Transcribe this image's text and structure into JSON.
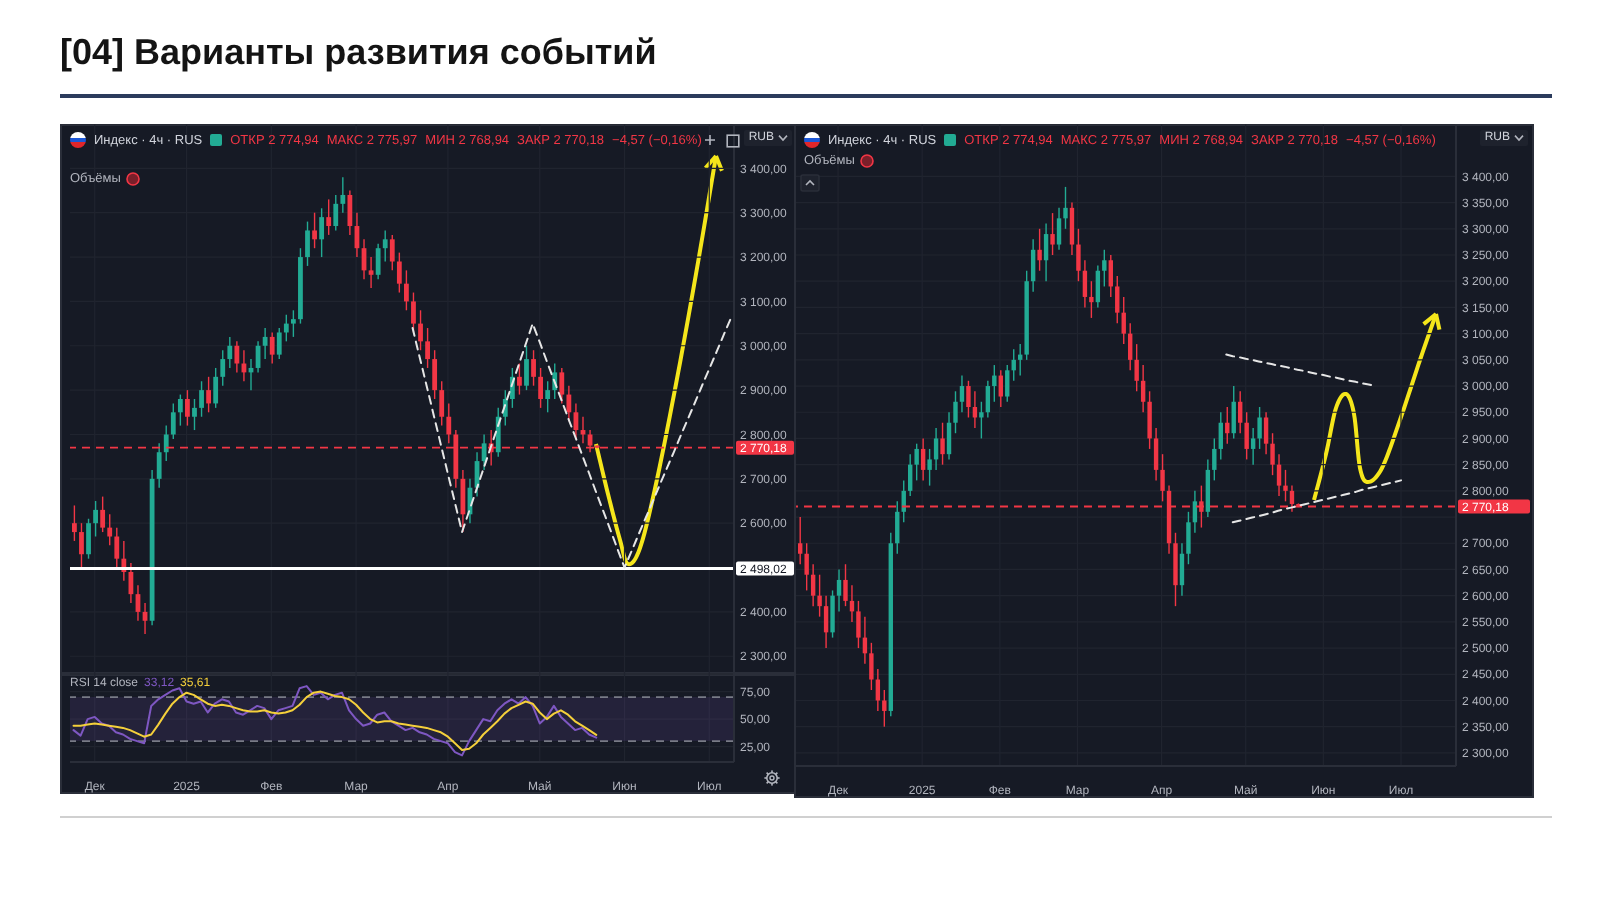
{
  "chart_data": [
    {
      "type": "candlestick",
      "title": "[04] Варианты развития событий",
      "annotations": [
        "Индекс · 4ч · RUS",
        "ОТКР 2 774,94",
        "МАКС 2 775,97",
        "МИН 2 768,94",
        "ЗАКР 2 770,18",
        "−4,57 (−0,16%)",
        "Объёмы",
        "RUB"
      ],
      "categories": [
        null,
        null,
        null,
        null,
        null,
        null,
        null,
        null,
        null,
        null,
        null,
        null,
        null,
        null,
        null,
        null,
        null,
        null,
        null,
        null,
        null,
        null,
        null,
        null,
        null,
        null,
        null,
        null,
        null,
        null,
        null,
        null,
        null,
        null,
        null,
        null,
        null,
        null,
        null,
        null,
        null,
        null,
        null,
        null,
        null,
        null,
        null,
        null,
        null,
        null,
        null,
        null,
        null,
        null,
        null,
        null,
        null,
        null,
        null,
        null,
        null,
        null,
        null,
        null,
        null,
        null,
        null,
        null,
        null,
        null,
        null,
        null,
        null,
        null,
        null,
        null,
        null,
        null,
        null,
        null,
        null,
        null,
        null,
        null,
        null,
        null,
        null,
        null,
        null,
        null,
        null,
        null,
        null,
        null
      ],
      "series": [
        {
          "type": "candlestick",
          "ohlc": [
            [
              2600,
              2640,
              2560,
              2580
            ],
            [
              2580,
              2600,
              2500,
              2530
            ],
            [
              2530,
              2610,
              2520,
              2600
            ],
            [
              2600,
              2650,
              2570,
              2630
            ],
            [
              2630,
              2660,
              2580,
              2590
            ],
            [
              2590,
              2620,
              2550,
              2570
            ],
            [
              2570,
              2590,
              2500,
              2520
            ],
            [
              2520,
              2560,
              2470,
              2490
            ],
            [
              2490,
              2510,
              2420,
              2440
            ],
            [
              2440,
              2460,
              2380,
              2400
            ],
            [
              2400,
              2420,
              2350,
              2380
            ],
            [
              2380,
              2720,
              2370,
              2700
            ],
            [
              2700,
              2780,
              2680,
              2760
            ],
            [
              2760,
              2820,
              2740,
              2800
            ],
            [
              2800,
              2870,
              2790,
              2850
            ],
            [
              2850,
              2890,
              2820,
              2880
            ],
            [
              2880,
              2900,
              2820,
              2840
            ],
            [
              2840,
              2880,
              2810,
              2860
            ],
            [
              2860,
              2920,
              2840,
              2900
            ],
            [
              2900,
              2930,
              2850,
              2870
            ],
            [
              2870,
              2950,
              2860,
              2930
            ],
            [
              2930,
              2990,
              2910,
              2970
            ],
            [
              2970,
              3020,
              2950,
              3000
            ],
            [
              3000,
              3010,
              2940,
              2960
            ],
            [
              2960,
              2990,
              2920,
              2940
            ],
            [
              2940,
              2970,
              2900,
              2950
            ],
            [
              2950,
              3010,
              2940,
              3000
            ],
            [
              3000,
              3040,
              2970,
              3020
            ],
            [
              3020,
              3030,
              2960,
              2980
            ],
            [
              2980,
              3040,
              2970,
              3030
            ],
            [
              3030,
              3070,
              3010,
              3050
            ],
            [
              3050,
              3080,
              3020,
              3060
            ],
            [
              3060,
              3220,
              3050,
              3200
            ],
            [
              3200,
              3280,
              3180,
              3260
            ],
            [
              3260,
              3300,
              3220,
              3240
            ],
            [
              3240,
              3310,
              3200,
              3290
            ],
            [
              3290,
              3330,
              3250,
              3270
            ],
            [
              3270,
              3340,
              3260,
              3320
            ],
            [
              3320,
              3380,
              3300,
              3340
            ],
            [
              3340,
              3350,
              3250,
              3270
            ],
            [
              3270,
              3300,
              3200,
              3220
            ],
            [
              3220,
              3240,
              3150,
              3170
            ],
            [
              3170,
              3200,
              3130,
              3160
            ],
            [
              3160,
              3230,
              3150,
              3220
            ],
            [
              3220,
              3260,
              3190,
              3240
            ],
            [
              3240,
              3250,
              3170,
              3190
            ],
            [
              3190,
              3210,
              3120,
              3140
            ],
            [
              3140,
              3170,
              3080,
              3100
            ],
            [
              3100,
              3120,
              3030,
              3050
            ],
            [
              3050,
              3080,
              2990,
              3010
            ],
            [
              3010,
              3040,
              2950,
              2970
            ],
            [
              2970,
              2990,
              2880,
              2900
            ],
            [
              2900,
              2920,
              2820,
              2840
            ],
            [
              2840,
              2870,
              2780,
              2800
            ],
            [
              2800,
              2810,
              2680,
              2700
            ],
            [
              2700,
              2720,
              2580,
              2620
            ],
            [
              2620,
              2700,
              2600,
              2680
            ],
            [
              2680,
              2760,
              2660,
              2740
            ],
            [
              2740,
              2800,
              2720,
              2780
            ],
            [
              2780,
              2810,
              2730,
              2760
            ],
            [
              2760,
              2860,
              2750,
              2840
            ],
            [
              2840,
              2900,
              2820,
              2880
            ],
            [
              2880,
              2950,
              2860,
              2930
            ],
            [
              2930,
              2960,
              2890,
              2910
            ],
            [
              2910,
              3000,
              2900,
              2970
            ],
            [
              2970,
              2990,
              2910,
              2930
            ],
            [
              2930,
              2950,
              2860,
              2880
            ],
            [
              2880,
              2920,
              2850,
              2900
            ],
            [
              2900,
              2960,
              2880,
              2940
            ],
            [
              2940,
              2950,
              2870,
              2890
            ],
            [
              2890,
              2910,
              2830,
              2850
            ],
            [
              2850,
              2870,
              2790,
              2810
            ],
            [
              2810,
              2840,
              2780,
              2800
            ],
            [
              2800,
              2810,
              2760,
              2775
            ],
            [
              2774.94,
              2775.97,
              2768.94,
              2770.18
            ],
            null,
            null,
            null,
            null,
            null,
            null,
            null,
            null,
            null,
            null,
            null,
            null,
            null,
            null,
            null,
            null,
            null,
            null,
            null
          ],
          "colors": [
            "#f23645",
            "#f23645",
            "#22ab94",
            "#22ab94",
            "#f23645",
            "#f23645",
            "#f23645",
            "#f23645",
            "#f23645",
            "#f23645",
            "#f23645",
            "#22ab94",
            "#22ab94",
            "#22ab94",
            "#22ab94",
            "#22ab94",
            "#f23645",
            "#22ab94",
            "#22ab94",
            "#f23645",
            "#22ab94",
            "#22ab94",
            "#22ab94",
            "#f23645",
            "#f23645",
            "#22ab94",
            "#22ab94",
            "#22ab94",
            "#f23645",
            "#22ab94",
            "#22ab94",
            "#22ab94",
            "#22ab94",
            "#22ab94",
            "#f23645",
            "#22ab94",
            "#f23645",
            "#22ab94",
            "#22ab94",
            "#f23645",
            "#f23645",
            "#f23645",
            "#f23645",
            "#22ab94",
            "#22ab94",
            "#f23645",
            "#f23645",
            "#f23645",
            "#f23645",
            "#f23645",
            "#f23645",
            "#f23645",
            "#f23645",
            "#f23645",
            "#f23645",
            "#f23645",
            "#22ab94",
            "#22ab94",
            "#22ab94",
            "#f23645",
            "#22ab94",
            "#22ab94",
            "#22ab94",
            "#f23645",
            "#22ab94",
            "#f23645",
            "#f23645",
            "#22ab94",
            "#22ab94",
            "#f23645",
            "#f23645",
            "#f23645",
            "#f23645",
            "#f23645",
            "#f23645",
            null,
            null,
            null,
            null,
            null,
            null,
            null,
            null,
            null,
            null,
            null,
            null,
            null,
            null,
            null,
            null,
            null,
            null,
            null
          ]
        },
        {
          "type": "line",
          "values": [
            null,
            null,
            null,
            null,
            null,
            null,
            null,
            null,
            null,
            null,
            null,
            null,
            null,
            null,
            null,
            null,
            null,
            null,
            null,
            null,
            null,
            null,
            null,
            null,
            null,
            null,
            null,
            null,
            null,
            null,
            null,
            null,
            null,
            null,
            null,
            null,
            null,
            null,
            null,
            null,
            null,
            null,
            null,
            null,
            null,
            null,
            null,
            null,
            3040,
            2974,
            2909,
            2843,
            2777,
            2711,
            2646,
            2580,
            2627,
            2674,
            2721,
            2768,
            2815,
            2862,
            2909,
            2956,
            3003,
            3050,
            3008,
            2965,
            2923,
            2881,
            2838,
            2796,
            2754,
            2712,
            2669,
            2627,
            2585,
            2542,
            2500,
            2537,
            2575,
            2612,
            2649,
            2687,
            2724,
            2761,
            2799,
            2836,
            2873,
            2911,
            2948,
            2985,
            3023,
            3060
          ],
          "color": "#e6e6e6",
          "line_style": "dashed"
        }
      ],
      "ylim": [
        2260,
        3500
      ],
      "yticks": [
        {
          "value": 2300,
          "label": "2 300,00"
        },
        {
          "value": 2400,
          "label": "2 400,00"
        },
        {
          "value": 2500,
          "label": null
        },
        {
          "value": 2600,
          "label": "2 600,00"
        },
        {
          "value": 2700,
          "label": "2 700,00"
        },
        {
          "value": 2800,
          "label": "2 800,00"
        },
        {
          "value": 2900,
          "label": "2 900,00"
        },
        {
          "value": 3000,
          "label": "3 000,00"
        },
        {
          "value": 3100,
          "label": "3 100,00"
        },
        {
          "value": 3200,
          "label": "3 200,00"
        },
        {
          "value": 3300,
          "label": "3 300,00"
        },
        {
          "value": 3400,
          "label": "3 400,00"
        }
      ],
      "ref_lines": [
        {
          "axis": "y",
          "value": 2770.18,
          "label": "2 770,18",
          "color": "#f23645",
          "line_style": "dashed"
        },
        {
          "axis": "y",
          "value": 2498.02,
          "label": "2 498,02",
          "color": "#ffffff"
        }
      ],
      "grid": true,
      "tick_labels": "y"
    },
    {
      "type": "line",
      "annotations": [
        "RSI 14 close",
        "33,12",
        "35,61"
      ],
      "categories": [
        null,
        null,
        null,
        "Дек",
        null,
        null,
        null,
        null,
        null,
        null,
        null,
        null,
        null,
        null,
        null,
        null,
        "2025",
        null,
        null,
        null,
        null,
        null,
        null,
        null,
        null,
        null,
        null,
        null,
        "Фев",
        null,
        null,
        null,
        null,
        null,
        null,
        null,
        null,
        null,
        null,
        null,
        "Мар",
        null,
        null,
        null,
        null,
        null,
        null,
        null,
        null,
        null,
        null,
        null,
        null,
        "Апр",
        null,
        null,
        null,
        null,
        null,
        null,
        null,
        null,
        null,
        null,
        null,
        null,
        "Май",
        null,
        null,
        null,
        null,
        null,
        null,
        null,
        null,
        null,
        null,
        null,
        "Июн",
        null,
        null,
        null,
        null,
        null,
        null,
        null,
        null,
        null,
        null,
        null,
        "Июл",
        null,
        null,
        null
      ],
      "series": [
        {
          "values": [
            40,
            35,
            50,
            52,
            46,
            44,
            38,
            36,
            32,
            30,
            28,
            62,
            68,
            72,
            76,
            78,
            66,
            64,
            66,
            56,
            64,
            68,
            66,
            56,
            54,
            58,
            62,
            60,
            50,
            58,
            60,
            62,
            78,
            80,
            72,
            74,
            68,
            72,
            74,
            58,
            50,
            44,
            46,
            54,
            56,
            48,
            44,
            40,
            42,
            38,
            36,
            32,
            30,
            28,
            20,
            17,
            30,
            40,
            50,
            48,
            58,
            64,
            68,
            64,
            70,
            62,
            46,
            52,
            62,
            52,
            46,
            40,
            42,
            36,
            33.12,
            null,
            null,
            null,
            null,
            null,
            null,
            null,
            null,
            null,
            null,
            null,
            null,
            null,
            null,
            null,
            null,
            null,
            null,
            null
          ],
          "color": "#7e57c2"
        },
        {
          "values": [
            44,
            44,
            45,
            46,
            45,
            44,
            43,
            42,
            40,
            37,
            34,
            36,
            45,
            55,
            64,
            70,
            74,
            72,
            68,
            64,
            62,
            63,
            62,
            60,
            58,
            57,
            57,
            58,
            56,
            55,
            56,
            58,
            63,
            70,
            74,
            75,
            73,
            71,
            70,
            68,
            63,
            56,
            50,
            47,
            48,
            48,
            46,
            45,
            44,
            43,
            42,
            40,
            38,
            34,
            28,
            22,
            23,
            28,
            36,
            42,
            48,
            55,
            60,
            63,
            66,
            64,
            56,
            50,
            55,
            58,
            54,
            48,
            44,
            40,
            35.61,
            null,
            null,
            null,
            null,
            null,
            null,
            null,
            null,
            null,
            null,
            null,
            null,
            null,
            null,
            null,
            null,
            null,
            null,
            null
          ],
          "color": "#f5d03b"
        }
      ],
      "ylim": [
        11,
        91
      ],
      "yticks": [
        {
          "value": 25,
          "label": "25,00"
        },
        {
          "value": 50,
          "label": "50,00"
        },
        {
          "value": 75,
          "label": "75,00"
        }
      ],
      "bands": [
        {
          "axis": "y",
          "from": 30,
          "to": 70,
          "color": "#7e57c2"
        }
      ],
      "ref_lines": [
        {
          "axis": "y",
          "value": 70,
          "color": "#787b86",
          "line_style": "dashed"
        },
        {
          "axis": "y",
          "value": 30,
          "color": "#787b86",
          "line_style": "dashed"
        }
      ],
      "grid": true
    },
    {
      "type": "candlestick",
      "annotations": [
        "Индекс · 4ч · RUS",
        "ОТКР 2 774,94",
        "МАКС 2 775,97",
        "МИН 2 768,94",
        "ЗАКР 2 770,18",
        "−4,57 (−0,16%)",
        "Объёмы",
        "RUB"
      ],
      "categories": [
        null,
        null,
        null,
        null,
        null,
        null,
        "Дек",
        null,
        null,
        null,
        null,
        null,
        null,
        null,
        null,
        null,
        null,
        null,
        null,
        "2025",
        null,
        null,
        null,
        null,
        null,
        null,
        null,
        null,
        null,
        null,
        null,
        "Фев",
        null,
        null,
        null,
        null,
        null,
        null,
        null,
        null,
        null,
        null,
        null,
        "Мар",
        null,
        null,
        null,
        null,
        null,
        null,
        null,
        null,
        null,
        null,
        null,
        null,
        "Апр",
        null,
        null,
        null,
        null,
        null,
        null,
        null,
        null,
        null,
        null,
        null,
        null,
        "Май",
        null,
        null,
        null,
        null,
        null,
        null,
        null,
        null,
        null,
        null,
        null,
        "Июн",
        null,
        null,
        null,
        null,
        null,
        null,
        null,
        null,
        null,
        null,
        null,
        "Июл",
        null,
        null,
        null,
        null,
        null,
        null,
        null,
        null
      ],
      "series": [
        {
          "type": "candlestick",
          "ohlc": [
            [
              2700,
              2750,
              2660,
              2680
            ],
            [
              2680,
              2700,
              2610,
              2640
            ],
            [
              2640,
              2660,
              2580,
              2600
            ],
            [
              2600,
              2640,
              2560,
              2580
            ],
            [
              2580,
              2600,
              2500,
              2530
            ],
            [
              2530,
              2610,
              2520,
              2600
            ],
            [
              2600,
              2650,
              2570,
              2630
            ],
            [
              2630,
              2660,
              2580,
              2590
            ],
            [
              2590,
              2620,
              2550,
              2570
            ],
            [
              2570,
              2590,
              2500,
              2520
            ],
            [
              2520,
              2560,
              2470,
              2490
            ],
            [
              2490,
              2510,
              2420,
              2440
            ],
            [
              2440,
              2460,
              2380,
              2400
            ],
            [
              2400,
              2420,
              2350,
              2380
            ],
            [
              2380,
              2720,
              2370,
              2700
            ],
            [
              2700,
              2780,
              2680,
              2760
            ],
            [
              2760,
              2820,
              2740,
              2800
            ],
            [
              2800,
              2870,
              2790,
              2850
            ],
            [
              2850,
              2890,
              2820,
              2880
            ],
            [
              2880,
              2900,
              2820,
              2840
            ],
            [
              2840,
              2880,
              2810,
              2860
            ],
            [
              2860,
              2920,
              2840,
              2900
            ],
            [
              2900,
              2930,
              2850,
              2870
            ],
            [
              2870,
              2950,
              2860,
              2930
            ],
            [
              2930,
              2990,
              2910,
              2970
            ],
            [
              2970,
              3020,
              2950,
              3000
            ],
            [
              3000,
              3010,
              2940,
              2960
            ],
            [
              2960,
              2990,
              2920,
              2940
            ],
            [
              2940,
              2970,
              2900,
              2950
            ],
            [
              2950,
              3010,
              2940,
              3000
            ],
            [
              3000,
              3040,
              2970,
              3020
            ],
            [
              3020,
              3030,
              2960,
              2980
            ],
            [
              2980,
              3040,
              2970,
              3030
            ],
            [
              3030,
              3070,
              3010,
              3050
            ],
            [
              3050,
              3080,
              3020,
              3060
            ],
            [
              3060,
              3220,
              3050,
              3200
            ],
            [
              3200,
              3280,
              3180,
              3260
            ],
            [
              3260,
              3300,
              3220,
              3240
            ],
            [
              3240,
              3310,
              3200,
              3290
            ],
            [
              3290,
              3330,
              3250,
              3270
            ],
            [
              3270,
              3340,
              3260,
              3320
            ],
            [
              3320,
              3380,
              3300,
              3340
            ],
            [
              3340,
              3350,
              3250,
              3270
            ],
            [
              3270,
              3300,
              3200,
              3220
            ],
            [
              3220,
              3240,
              3150,
              3170
            ],
            [
              3170,
              3200,
              3130,
              3160
            ],
            [
              3160,
              3230,
              3150,
              3220
            ],
            [
              3220,
              3260,
              3190,
              3240
            ],
            [
              3240,
              3250,
              3170,
              3190
            ],
            [
              3190,
              3210,
              3120,
              3140
            ],
            [
              3140,
              3170,
              3080,
              3100
            ],
            [
              3100,
              3120,
              3030,
              3050
            ],
            [
              3050,
              3080,
              2990,
              3010
            ],
            [
              3010,
              3040,
              2950,
              2970
            ],
            [
              2970,
              2990,
              2880,
              2900
            ],
            [
              2900,
              2920,
              2820,
              2840
            ],
            [
              2840,
              2870,
              2780,
              2800
            ],
            [
              2800,
              2810,
              2680,
              2700
            ],
            [
              2700,
              2720,
              2580,
              2620
            ],
            [
              2620,
              2700,
              2600,
              2680
            ],
            [
              2680,
              2760,
              2660,
              2740
            ],
            [
              2740,
              2800,
              2720,
              2780
            ],
            [
              2780,
              2810,
              2730,
              2760
            ],
            [
              2760,
              2860,
              2750,
              2840
            ],
            [
              2840,
              2900,
              2820,
              2880
            ],
            [
              2880,
              2950,
              2860,
              2930
            ],
            [
              2930,
              2960,
              2890,
              2910
            ],
            [
              2910,
              3000,
              2900,
              2970
            ],
            [
              2970,
              2990,
              2910,
              2930
            ],
            [
              2930,
              2950,
              2860,
              2880
            ],
            [
              2880,
              2920,
              2850,
              2900
            ],
            [
              2900,
              2960,
              2880,
              2940
            ],
            [
              2940,
              2950,
              2870,
              2890
            ],
            [
              2890,
              2910,
              2830,
              2850
            ],
            [
              2850,
              2870,
              2790,
              2810
            ],
            [
              2810,
              2840,
              2780,
              2800
            ],
            [
              2800,
              2810,
              2760,
              2775
            ],
            [
              2774.94,
              2775.97,
              2768.94,
              2770.18
            ],
            null,
            null,
            null,
            null,
            null,
            null,
            null,
            null,
            null,
            null,
            null,
            null,
            null,
            null,
            null,
            null,
            null,
            null,
            null,
            null,
            null,
            null,
            null,
            null
          ],
          "colors": [
            "#f23645",
            "#f23645",
            "#f23645",
            "#f23645",
            "#f23645",
            "#22ab94",
            "#22ab94",
            "#f23645",
            "#f23645",
            "#f23645",
            "#f23645",
            "#f23645",
            "#f23645",
            "#f23645",
            "#22ab94",
            "#22ab94",
            "#22ab94",
            "#22ab94",
            "#22ab94",
            "#f23645",
            "#22ab94",
            "#22ab94",
            "#f23645",
            "#22ab94",
            "#22ab94",
            "#22ab94",
            "#f23645",
            "#f23645",
            "#22ab94",
            "#22ab94",
            "#22ab94",
            "#f23645",
            "#22ab94",
            "#22ab94",
            "#22ab94",
            "#22ab94",
            "#22ab94",
            "#f23645",
            "#22ab94",
            "#f23645",
            "#22ab94",
            "#22ab94",
            "#f23645",
            "#f23645",
            "#f23645",
            "#f23645",
            "#22ab94",
            "#22ab94",
            "#f23645",
            "#f23645",
            "#f23645",
            "#f23645",
            "#f23645",
            "#f23645",
            "#f23645",
            "#f23645",
            "#f23645",
            "#f23645",
            "#f23645",
            "#22ab94",
            "#22ab94",
            "#22ab94",
            "#f23645",
            "#22ab94",
            "#22ab94",
            "#22ab94",
            "#f23645",
            "#22ab94",
            "#f23645",
            "#f23645",
            "#22ab94",
            "#22ab94",
            "#f23645",
            "#f23645",
            "#f23645",
            "#f23645",
            "#f23645",
            "#f23645",
            null,
            null,
            null,
            null,
            null,
            null,
            null,
            null,
            null,
            null,
            null,
            null,
            null,
            null,
            null,
            null,
            null,
            null,
            null,
            null,
            null,
            null,
            null,
            null
          ]
        },
        {
          "type": "line",
          "values": [
            null,
            null,
            null,
            null,
            null,
            null,
            null,
            null,
            null,
            null,
            null,
            null,
            null,
            null,
            null,
            null,
            null,
            null,
            null,
            null,
            null,
            null,
            null,
            null,
            null,
            null,
            null,
            null,
            null,
            null,
            null,
            null,
            null,
            null,
            null,
            null,
            null,
            null,
            null,
            null,
            null,
            null,
            null,
            null,
            null,
            null,
            null,
            null,
            null,
            null,
            null,
            null,
            null,
            null,
            null,
            null,
            null,
            null,
            null,
            null,
            null,
            null,
            null,
            null,
            null,
            null,
            3060,
            3057,
            3055,
            3052,
            3050,
            3047,
            3044,
            3042,
            3039,
            3037,
            3034,
            3031,
            3029,
            3026,
            3023,
            3021,
            3018,
            3016,
            3013,
            3010,
            3008,
            3005,
            3003,
            3000,
            null,
            null,
            null,
            null,
            null,
            null,
            null,
            null,
            null,
            null,
            null,
            null
          ],
          "color": "#e6e6e6",
          "line_style": "dashed"
        },
        {
          "type": "line",
          "values": [
            null,
            null,
            null,
            null,
            null,
            null,
            null,
            null,
            null,
            null,
            null,
            null,
            null,
            null,
            null,
            null,
            null,
            null,
            null,
            null,
            null,
            null,
            null,
            null,
            null,
            null,
            null,
            null,
            null,
            null,
            null,
            null,
            null,
            null,
            null,
            null,
            null,
            null,
            null,
            null,
            null,
            null,
            null,
            null,
            null,
            null,
            null,
            null,
            null,
            null,
            null,
            null,
            null,
            null,
            null,
            null,
            null,
            null,
            null,
            null,
            null,
            null,
            null,
            null,
            null,
            null,
            null,
            2740,
            2743,
            2746,
            2749,
            2752,
            2755,
            2758,
            2762,
            2765,
            2768,
            2771,
            2774,
            2777,
            2780,
            2783,
            2786,
            2789,
            2792,
            2795,
            2798,
            2802,
            2805,
            2808,
            2811,
            2814,
            2817,
            2820,
            null,
            null,
            null,
            null,
            null,
            null,
            null,
            null
          ],
          "color": "#e6e6e6",
          "line_style": "dashed"
        }
      ],
      "ylim": [
        2275,
        3500
      ],
      "yticks": [
        {
          "value": 2300,
          "label": "2 300,00"
        },
        {
          "value": 2350,
          "label": "2 350,00"
        },
        {
          "value": 2400,
          "label": "2 400,00"
        },
        {
          "value": 2450,
          "label": "2 450,00"
        },
        {
          "value": 2500,
          "label": "2 500,00"
        },
        {
          "value": 2550,
          "label": "2 550,00"
        },
        {
          "value": 2600,
          "label": "2 600,00"
        },
        {
          "value": 2650,
          "label": "2 650,00"
        },
        {
          "value": 2700,
          "label": "2 700,00"
        },
        {
          "value": 2750,
          "label": null
        },
        {
          "value": 2800,
          "label": "2 800,00"
        },
        {
          "value": 2850,
          "label": "2 850,00"
        },
        {
          "value": 2900,
          "label": "2 900,00"
        },
        {
          "value": 2950,
          "label": "2 950,00"
        },
        {
          "value": 3000,
          "label": "3 000,00"
        },
        {
          "value": 3050,
          "label": "3 050,00"
        },
        {
          "value": 3100,
          "label": "3 100,00"
        },
        {
          "value": 3150,
          "label": "3 150,00"
        },
        {
          "value": 3200,
          "label": "3 200,00"
        },
        {
          "value": 3250,
          "label": "3 250,00"
        },
        {
          "value": 3300,
          "label": "3 300,00"
        },
        {
          "value": 3350,
          "label": "3 350,00"
        },
        {
          "value": 3400,
          "label": "3 400,00"
        }
      ],
      "ref_lines": [
        {
          "axis": "y",
          "value": 2770.18,
          "label": "2 770,18",
          "color": "#f23645",
          "line_style": "dashed"
        }
      ],
      "grid": true
    }
  ]
}
